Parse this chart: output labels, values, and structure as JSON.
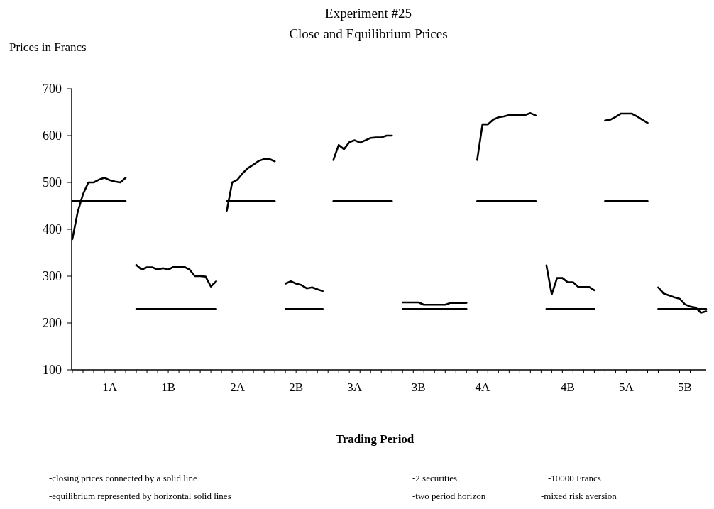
{
  "chart_data": {
    "type": "line",
    "title": "Experiment #25",
    "subtitle": "Close and Equilibrium Prices",
    "xlabel": "Trading Period",
    "ylabel": "Prices in Francs",
    "annotations": [
      "-closing prices connected by a solid line",
      "-equilibrium represented by horizontal solid lines",
      "-2 securities",
      "-two period horizon",
      "-10000 Francs",
      "-mixed risk aversion"
    ],
    "ylim": [
      100,
      700
    ],
    "yticks": [
      100,
      200,
      300,
      400,
      500,
      600,
      700
    ],
    "categories": [
      null,
      null,
      null,
      null,
      null,
      null,
      null,
      "1A",
      null,
      null,
      null,
      null,
      null,
      null,
      null,
      null,
      null,
      null,
      "1B",
      null,
      null,
      null,
      null,
      null,
      null,
      null,
      null,
      null,
      null,
      null,
      null,
      "2A",
      null,
      null,
      null,
      null,
      null,
      null,
      null,
      null,
      null,
      null,
      "2B",
      null,
      null,
      null,
      null,
      null,
      null,
      null,
      null,
      null,
      null,
      "3A",
      null,
      null,
      null,
      null,
      null,
      null,
      null,
      null,
      null,
      null,
      null,
      "3B",
      null,
      null,
      null,
      null,
      null,
      null,
      null,
      null,
      null,
      null,
      null,
      "4A",
      null,
      null,
      null,
      null,
      null,
      null,
      null,
      null,
      null,
      null,
      null,
      null,
      null,
      null,
      null,
      "4B",
      null,
      null,
      null,
      null,
      null,
      null,
      null,
      null,
      null,
      null,
      "5A",
      null,
      null,
      null,
      null,
      null,
      null,
      null,
      null,
      null,
      null,
      "5B",
      null,
      null,
      null,
      null
    ],
    "grid": false,
    "marker": "none",
    "line_style": "solid",
    "series": [
      {
        "color": "#000000",
        "values": [
          379,
          437,
          475,
          500,
          500,
          506,
          510,
          505,
          502,
          500,
          510,
          null,
          324,
          314,
          319,
          319,
          314,
          317,
          314,
          320,
          320,
          320,
          314,
          300,
          300,
          299,
          278,
          289,
          null,
          440,
          500,
          506,
          520,
          531,
          538,
          546,
          550,
          550,
          545,
          null,
          284,
          289,
          284,
          281,
          274,
          276,
          272,
          268,
          null,
          548,
          580,
          571,
          586,
          590,
          585,
          590,
          595,
          596,
          596,
          600,
          600,
          null,
          244,
          244,
          244,
          244,
          239,
          239,
          239,
          239,
          239,
          243,
          243,
          243,
          243,
          null,
          548,
          624,
          624,
          634,
          639,
          641,
          644,
          644,
          644,
          644,
          648,
          643,
          null,
          323,
          261,
          296,
          296,
          287,
          287,
          277,
          277,
          277,
          270,
          null,
          632,
          634,
          640,
          647,
          647,
          647,
          641,
          634,
          627,
          null,
          276,
          263,
          259,
          255,
          252,
          240,
          235,
          233,
          222,
          225
        ]
      },
      {
        "color": "#000000",
        "values": [
          460,
          460,
          460,
          460,
          460,
          460,
          460,
          460,
          460,
          460,
          460,
          null,
          230,
          230,
          230,
          230,
          230,
          230,
          230,
          230,
          230,
          230,
          230,
          230,
          230,
          230,
          230,
          230,
          null,
          460,
          460,
          460,
          460,
          460,
          460,
          460,
          460,
          460,
          460,
          null,
          230,
          230,
          230,
          230,
          230,
          230,
          230,
          230,
          null,
          460,
          460,
          460,
          460,
          460,
          460,
          460,
          460,
          460,
          460,
          460,
          460,
          null,
          230,
          230,
          230,
          230,
          230,
          230,
          230,
          230,
          230,
          230,
          230,
          230,
          230,
          null,
          460,
          460,
          460,
          460,
          460,
          460,
          460,
          460,
          460,
          460,
          460,
          460,
          null,
          230,
          230,
          230,
          230,
          230,
          230,
          230,
          230,
          230,
          230,
          null,
          460,
          460,
          460,
          460,
          460,
          460,
          460,
          460,
          460,
          null,
          230,
          230,
          230,
          230,
          230,
          230,
          230,
          230,
          230,
          230
        ]
      }
    ]
  }
}
